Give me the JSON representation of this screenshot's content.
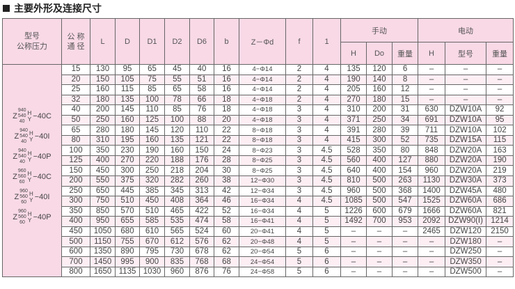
{
  "title": "主要外形及连接尺寸",
  "headers": {
    "model": "型号\n公称压力",
    "dn": "公 称\n通 径",
    "L": "L",
    "D": "D",
    "D1": "D1",
    "D2": "D2",
    "D6": "D6",
    "b": "b",
    "zd": "Z－Φd",
    "f": "f",
    "one": "1",
    "manual": "手动",
    "electric": "电动",
    "m_H": "H",
    "m_Do": "Do",
    "m_w": "重量",
    "e_H": "H",
    "e_model": "型号",
    "e_w": "重量"
  },
  "models": [
    {
      "z": "Z",
      "top": "940",
      "mid": "540",
      "bot": "40",
      "h": "H",
      "y": "Y",
      "suffix": "−40C"
    },
    {
      "z": "Z",
      "top": "940",
      "mid": "540",
      "bot": "40",
      "h": "H",
      "y": "Y",
      "suffix": "−40I"
    },
    {
      "z": "Z",
      "top": "940",
      "mid": "540",
      "bot": "40",
      "h": "H",
      "y": "Y",
      "suffix": "−40P"
    },
    {
      "z": "Z",
      "top": "960",
      "mid": "560",
      "bot": "60",
      "h": "H",
      "y": "Y",
      "suffix": "−40C"
    },
    {
      "z": "Z",
      "top": "960",
      "mid": "560",
      "bot": "60",
      "h": "H",
      "y": "Y",
      "suffix": "−40I"
    },
    {
      "z": "Z",
      "top": "960",
      "mid": "560",
      "bot": "60",
      "h": "H",
      "y": "Y",
      "suffix": "−40P"
    }
  ],
  "rows": [
    [
      "15",
      "130",
      "95",
      "65",
      "45",
      "40",
      "16",
      "4−Φ14",
      "2",
      "4",
      "135",
      "120",
      "6",
      "–",
      "–",
      "–"
    ],
    [
      "20",
      "150",
      "105",
      "75",
      "55",
      "51",
      "16",
      "4−Φ14",
      "2",
      "4",
      "190",
      "140",
      "8",
      "–",
      "–",
      "–"
    ],
    [
      "25",
      "160",
      "115",
      "85",
      "65",
      "58",
      "16",
      "4−Φ14",
      "2",
      "4",
      "205",
      "160",
      "12",
      "–",
      "–",
      "–"
    ],
    [
      "32",
      "180",
      "135",
      "100",
      "78",
      "66",
      "18",
      "4−Φ18",
      "2",
      "4",
      "270",
      "180",
      "15",
      "–",
      "–",
      "–"
    ],
    [
      "40",
      "200",
      "145",
      "110",
      "85",
      "76",
      "18",
      "4−Φ18",
      "3",
      "4",
      "310",
      "200",
      "31",
      "630",
      "DZW10A",
      "92"
    ],
    [
      "50",
      "250",
      "160",
      "125",
      "100",
      "88",
      "20",
      "4−Φ18",
      "3",
      "4",
      "371",
      "250",
      "34",
      "691",
      "DZW10A",
      "95"
    ],
    [
      "65",
      "280",
      "180",
      "145",
      "120",
      "110",
      "22",
      "8−Φ18",
      "3",
      "4",
      "391",
      "280",
      "39",
      "711",
      "DZW10A",
      "102"
    ],
    [
      "80",
      "310",
      "195",
      "160",
      "135",
      "121",
      "22",
      "8−Φ18",
      "3",
      "4",
      "415",
      "300",
      "52",
      "735",
      "DZW15A",
      "115"
    ],
    [
      "100",
      "350",
      "230",
      "190",
      "160",
      "150",
      "24",
      "8−Φ23",
      "3",
      "4.5",
      "528",
      "350",
      "80",
      "848",
      "DZW20A",
      "163"
    ],
    [
      "125",
      "400",
      "270",
      "220",
      "188",
      "176",
      "28",
      "8−Φ25",
      "3",
      "4.5",
      "560",
      "400",
      "127",
      "880",
      "DZW20A",
      "190"
    ],
    [
      "150",
      "450",
      "300",
      "250",
      "218",
      "204",
      "30",
      "8−Φ25",
      "3",
      "4.5",
      "640",
      "400",
      "154",
      "960",
      "DZW20A",
      "219"
    ],
    [
      "200",
      "550",
      "375",
      "320",
      "282",
      "260",
      "38",
      "12−Φ30",
      "3",
      "4.5",
      "810",
      "500",
      "263",
      "1130",
      "DZW30A",
      "373"
    ],
    [
      "250",
      "650",
      "445",
      "385",
      "345",
      "313",
      "42",
      "12−Φ34",
      "3",
      "4.5",
      "960",
      "500",
      "368",
      "1400",
      "DZW45A",
      "480"
    ],
    [
      "300",
      "750",
      "510",
      "450",
      "408",
      "364",
      "46",
      "16−Φ34",
      "4",
      "4.5",
      "1085",
      "500",
      "547",
      "1525",
      "DZW60A",
      "686"
    ],
    [
      "350",
      "850",
      "570",
      "510",
      "465",
      "422",
      "52",
      "16−Φ34",
      "4",
      "5",
      "1226",
      "600",
      "679",
      "1666",
      "DZW60A",
      "821"
    ],
    [
      "400",
      "950",
      "655",
      "585",
      "535",
      "474",
      "58",
      "16−Φ41",
      "4",
      "5",
      "1492",
      "700",
      "953",
      "2092",
      "DZW90(I)",
      "1214"
    ],
    [
      "450",
      "1050",
      "680",
      "610",
      "565",
      "524",
      "60",
      "20−Φ41",
      "4",
      "5",
      "–",
      "–",
      "–",
      "2465",
      "DZW120",
      "2150"
    ],
    [
      "500",
      "1150",
      "755",
      "670",
      "612",
      "576",
      "62",
      "20−Φ48",
      "4",
      "5",
      "–",
      "–",
      "–",
      "–",
      "DZW180",
      "–"
    ],
    [
      "600",
      "1350",
      "890",
      "795",
      "730",
      "678",
      "62",
      "20−Φ54",
      "5",
      "6",
      "–",
      "–",
      "–",
      "–",
      "DZW250",
      "–"
    ],
    [
      "700",
      "1450",
      "995",
      "900",
      "835",
      "768",
      "68",
      "24−Φ54",
      "5",
      "6",
      "–",
      "–",
      "–",
      "–",
      "DZW350",
      "–"
    ],
    [
      "800",
      "1650",
      "1135",
      "1030",
      "960",
      "876",
      "76",
      "24−Φ58",
      "5",
      "6",
      "–",
      "–",
      "–",
      "–",
      "DZW500",
      "–"
    ]
  ],
  "colors": {
    "header_bg": "#f9d9e6",
    "alt_row": "#fdeef4",
    "border": "#666666"
  }
}
